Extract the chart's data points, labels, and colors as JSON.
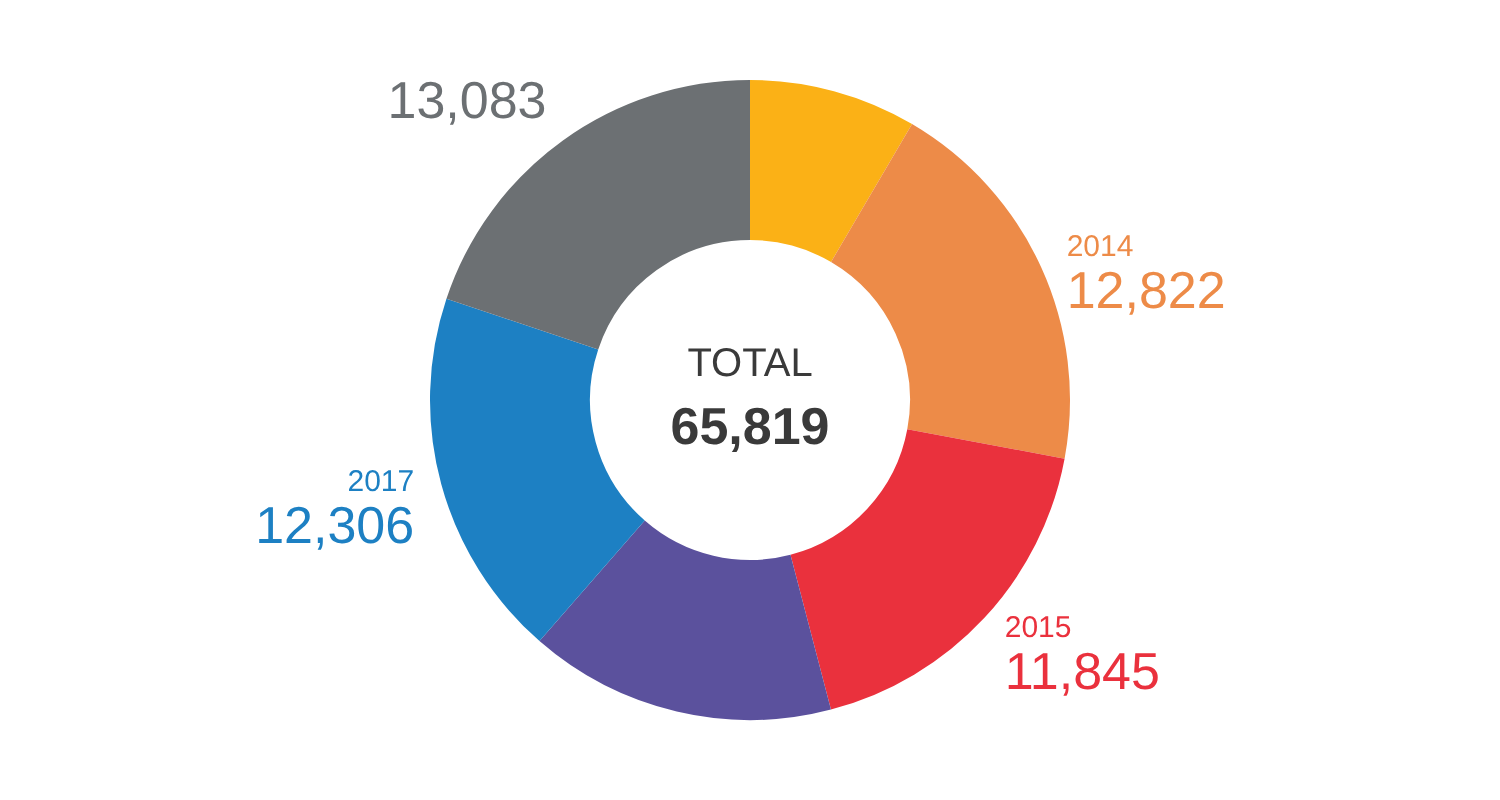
{
  "chart_data": {
    "type": "donut",
    "categories": [
      null,
      "2014",
      "2015",
      null,
      "2017",
      null
    ],
    "values": [
      5563,
      12822,
      11845,
      10200,
      12306,
      13083
    ],
    "value_labels": [
      null,
      "12,822",
      "11,845",
      null,
      "12,306",
      "13,083"
    ],
    "colors": [
      "#fbb116",
      "#ed8b48",
      "#ea313d",
      "#5b519d",
      "#1d80c3",
      "#6c7073"
    ],
    "annotations": [
      "TOTAL",
      "65,819"
    ],
    "legend": false
  }
}
